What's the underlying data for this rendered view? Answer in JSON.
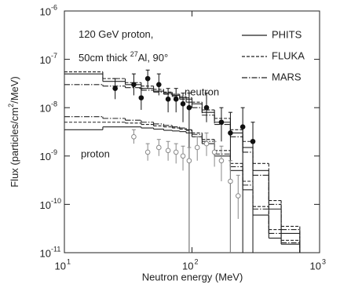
{
  "chart_data": {
    "type": "step-histogram",
    "xlabel": "Neutron energy (MeV)",
    "ylabel": {
      "parts": [
        "Flux (particles/cm",
        "2",
        "/MeV)"
      ]
    },
    "annotations": [
      {
        "parts": [
          "120 GeV proton,"
        ]
      },
      {
        "parts": [
          "50cm thick ",
          "27",
          "Al, 90°"
        ]
      }
    ],
    "log_x": true,
    "log_y": true,
    "xlim": [
      10,
      1000
    ],
    "ylim": [
      1e-11,
      1e-06
    ],
    "xticks": [
      {
        "value": 10,
        "label": "10",
        "exp": "1"
      },
      {
        "value": 100,
        "label": "10",
        "exp": "2"
      },
      {
        "value": 1000,
        "label": "10",
        "exp": "3"
      }
    ],
    "yticks": [
      {
        "value": 1e-11,
        "label": "10",
        "exp": "-11"
      },
      {
        "value": 1e-10,
        "label": "10",
        "exp": "-10"
      },
      {
        "value": 1e-09,
        "label": "10",
        "exp": "-9"
      },
      {
        "value": 1e-08,
        "label": "10",
        "exp": "-8"
      },
      {
        "value": 1e-07,
        "label": "10",
        "exp": "-7"
      },
      {
        "value": 1e-06,
        "label": "10",
        "exp": "-6"
      }
    ],
    "legend": [
      {
        "name": "PHITS",
        "dash": "none"
      },
      {
        "name": "FLUKA",
        "dash": "4,2"
      },
      {
        "name": "MARS",
        "dash": "7,2,1.5,2"
      }
    ],
    "bins": [
      10,
      20,
      30,
      40,
      50,
      60,
      70,
      80,
      90,
      100,
      120,
      150,
      200,
      250,
      300,
      400,
      500,
      700
    ],
    "groups": [
      {
        "label": "neutron",
        "series": [
          {
            "values": [
              5e-08,
              3.5e-08,
              3e-08,
              2.5e-08,
              2.2e-08,
              2e-08,
              1.8e-08,
              1.6e-08,
              1.5e-08,
              1.2e-08,
              8e-09,
              5e-09,
              3e-09,
              1.5e-09,
              5e-10,
              8e-11,
              2.5e-11
            ]
          },
          {
            "values": [
              5.5e-08,
              4e-08,
              3.3e-08,
              2.8e-08,
              2.4e-08,
              2.1e-08,
              1.9e-08,
              1.7e-08,
              1.6e-08,
              1.3e-08,
              9e-09,
              6e-09,
              3.5e-09,
              2e-09,
              7e-10,
              1.2e-10,
              3.5e-11
            ]
          },
          {
            "values": [
              3e-08,
              2.8e-08,
              2.6e-08,
              2.3e-08,
              2.1e-08,
              1.9e-08,
              1.7e-08,
              1.5e-08,
              1.3e-08,
              1e-08,
              7e-09,
              4.5e-09,
              2.5e-09,
              1.2e-09,
              4e-10,
              1e-10,
              3e-11
            ]
          }
        ],
        "points": {
          "marker": "filled",
          "color": "#111111",
          "x": [
            25,
            35,
            40,
            45,
            55,
            65,
            75,
            85,
            95,
            130,
            170,
            200,
            250,
            300
          ],
          "values": [
            2.5e-08,
            3e-08,
            1.6e-08,
            4e-08,
            3e-08,
            1.5e-08,
            1.5e-08,
            1.2e-08,
            1e-08,
            1e-08,
            5e-09,
            3e-09,
            4e-09,
            2e-09
          ],
          "lower": [
            1.5e-08,
            1.8e-08,
            9e-09,
            2.5e-08,
            1.8e-08,
            8e-09,
            8e-09,
            5e-09,
            1e-11,
            5e-09,
            2e-09,
            1e-11,
            1e-11,
            1e-11
          ],
          "upper": [
            4e-08,
            5e-08,
            2.5e-08,
            6e-08,
            5e-08,
            2.5e-08,
            2.5e-08,
            2e-08,
            2e-08,
            2e-08,
            1e-08,
            8e-09,
            1e-08,
            5e-09
          ]
        }
      },
      {
        "label": "proton",
        "series": [
          {
            "values": [
              3.5e-09,
              4e-09,
              4e-09,
              3.8e-09,
              3.6e-09,
              3.4e-09,
              3.3e-09,
              3.2e-09,
              3e-09,
              2.5e-09,
              1.8e-09,
              1e-09,
              5e-10,
              2e-10,
              6e-11,
              2e-11,
              1.5e-11
            ]
          },
          {
            "values": [
              5e-09,
              5e-09,
              4.8e-09,
              4.5e-09,
              4.2e-09,
              4e-09,
              3.8e-09,
              3.6e-09,
              3.4e-09,
              3e-09,
              2.2e-09,
              1.3e-09,
              7e-10,
              3e-10,
              9e-11,
              3e-11,
              1.8e-11
            ]
          },
          {
            "values": [
              6.5e-09,
              6e-09,
              5.5e-09,
              5e-09,
              4.6e-09,
              4.3e-09,
              4e-09,
              3.8e-09,
              3.5e-09,
              2.8e-09,
              2e-09,
              1.1e-09,
              6e-10,
              2.5e-10,
              8e-11,
              2.5e-11,
              1.6e-11
            ]
          }
        ],
        "points": {
          "marker": "open",
          "color": "#888888",
          "x": [
            35,
            45,
            55,
            65,
            75,
            85,
            95,
            110,
            130,
            150,
            170,
            200,
            230
          ],
          "values": [
            2.5e-09,
            1.2e-09,
            1.5e-09,
            1.3e-09,
            1.2e-09,
            1e-09,
            8e-10,
            1.5e-09,
            1.8e-09,
            1.2e-09,
            8e-10,
            3e-10,
            1.5e-10
          ],
          "lower": [
            1.8e-09,
            8e-10,
            1e-09,
            8e-10,
            7e-10,
            5e-10,
            1e-11,
            8e-10,
            1e-09,
            6e-10,
            3e-10,
            1e-11,
            5e-11
          ],
          "upper": [
            3.5e-09,
            1.8e-09,
            2.2e-09,
            2e-09,
            1.8e-09,
            1.6e-09,
            1.5e-09,
            2.5e-09,
            3e-09,
            2e-09,
            1.6e-09,
            8e-10,
            4e-10
          ]
        }
      }
    ]
  }
}
